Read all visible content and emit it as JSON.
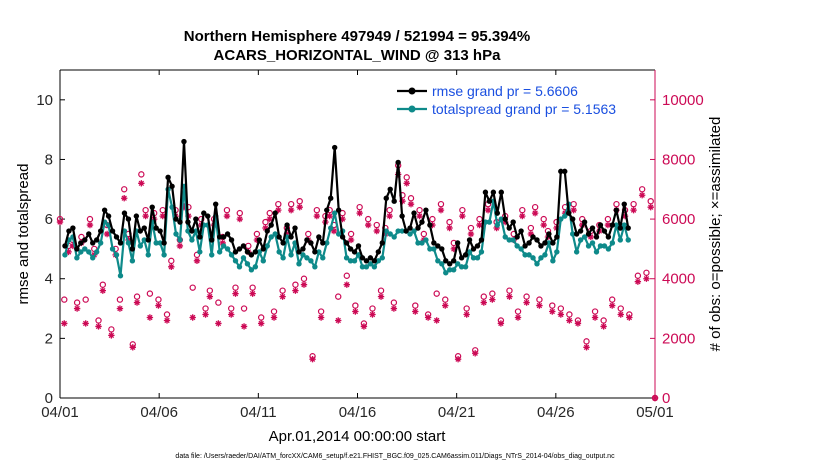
{
  "chart_data": {
    "type": "line",
    "title_line1": "Northern Hemisphere 497949 / 521994 = 95.394%",
    "title_line2": "ACARS_HORIZONTAL_WIND @ 313 hPa",
    "xlabel": "Apr.01,2014 00:00:00 start",
    "ylabel_left": "rmse and totalspread",
    "ylabel_right": "# of obs: o=possible; ×=assimilated",
    "x_ticks": [
      {
        "day": 0,
        "label": "04/01"
      },
      {
        "day": 5,
        "label": "04/06"
      },
      {
        "day": 10,
        "label": "04/11"
      },
      {
        "day": 15,
        "label": "04/16"
      },
      {
        "day": 20,
        "label": "04/21"
      },
      {
        "day": 25,
        "label": "04/26"
      },
      {
        "day": 30,
        "label": "05/01"
      }
    ],
    "xlim": [
      0,
      30
    ],
    "ylim_left": [
      0,
      11
    ],
    "ylim_right": [
      0,
      11000
    ],
    "yticks_left": [
      0,
      2,
      4,
      6,
      8,
      10
    ],
    "yticks_right": [
      0,
      2000,
      4000,
      6000,
      8000,
      10000
    ],
    "legend": [
      {
        "label": "rmse grand pr = 5.6606",
        "series": "rmse"
      },
      {
        "label": "totalspread grand pr = 5.1563",
        "series": "totalspread"
      }
    ],
    "colors": {
      "rmse": "#000000",
      "totalspread": "#0e8a8a",
      "obs": "#cc0a55",
      "legend_text": "#1a4fe0"
    },
    "series": [
      {
        "name": "rmse",
        "values": [
          5.1,
          5.6,
          5.7,
          5.0,
          5.2,
          5.3,
          5.5,
          5.2,
          5.3,
          5.6,
          6.3,
          6.1,
          5.6,
          5.4,
          5.2,
          6.2,
          6.0,
          5.0,
          6.1,
          5.6,
          5.7,
          5.3,
          6.4,
          5.7,
          5.6,
          5.2,
          7.4,
          7.1,
          6.0,
          5.9,
          8.6,
          5.9,
          5.6,
          6.0,
          5.4,
          6.2,
          6.1,
          5.3,
          6.5,
          5.4,
          5.4,
          5.5,
          5.3,
          4.9,
          5.0,
          5.1,
          4.9,
          4.8,
          4.9,
          5.3,
          5.0,
          5.6,
          5.8,
          6.2,
          5.4,
          5.2,
          5.8,
          5.4,
          5.7,
          4.9,
          5.0,
          5.3,
          5.2,
          4.9,
          5.4,
          5.2,
          6.3,
          6.7,
          8.4,
          6.3,
          5.4,
          5.2,
          5.0,
          4.9,
          5.1,
          4.7,
          4.6,
          4.7,
          4.6,
          4.9,
          5.2,
          6.7,
          7.0,
          6.6,
          7.9,
          6.1,
          5.6,
          5.7,
          6.2,
          5.7,
          5.9,
          6.3,
          5.8,
          5.2,
          5.1,
          5.0,
          4.6,
          4.5,
          4.6,
          5.2,
          4.7,
          4.8,
          5.3,
          5.0,
          5.1,
          5.3,
          6.9,
          6.6,
          6.9,
          6.2,
          6.9,
          6.0,
          5.7,
          5.9,
          5.4,
          5.6,
          5.1,
          5.2,
          5.4,
          5.3,
          5.1,
          5.2,
          5.5,
          5.2,
          5.4,
          7.6,
          7.6,
          6.2,
          6.0,
          5.5,
          5.6,
          5.9,
          5.5,
          5.7,
          5.4,
          5.8,
          5.6,
          5.4,
          5.8,
          6.3,
          5.7,
          6.5,
          5.7
        ]
      },
      {
        "name": "totalspread",
        "values": [
          4.8,
          5.3,
          5.4,
          4.7,
          4.9,
          5.0,
          4.9,
          4.7,
          4.9,
          5.2,
          5.9,
          5.8,
          5.0,
          4.8,
          4.1,
          5.6,
          5.2,
          4.6,
          5.6,
          5.1,
          5.3,
          4.8,
          5.9,
          5.2,
          5.2,
          4.8,
          7.0,
          6.4,
          5.5,
          5.3,
          7.1,
          5.6,
          5.3,
          5.6,
          4.9,
          5.8,
          5.8,
          4.8,
          6.1,
          4.9,
          5.1,
          5.0,
          4.8,
          4.6,
          4.4,
          4.7,
          4.5,
          4.3,
          4.4,
          4.9,
          4.6,
          5.1,
          5.4,
          5.5,
          4.9,
          4.7,
          5.4,
          4.8,
          5.2,
          4.5,
          4.8,
          4.7,
          4.6,
          4.4,
          4.9,
          4.7,
          5.2,
          5.7,
          6.2,
          5.5,
          5.6,
          4.7,
          4.6,
          4.6,
          4.8,
          4.4,
          4.4,
          4.5,
          4.4,
          4.6,
          4.7,
          5.6,
          5.5,
          5.4,
          5.6,
          5.6,
          5.6,
          5.5,
          5.6,
          5.2,
          5.2,
          5.3,
          5.0,
          5.0,
          4.6,
          4.5,
          4.2,
          4.3,
          4.3,
          4.5,
          4.4,
          4.4,
          4.9,
          4.7,
          4.7,
          4.9,
          5.9,
          5.9,
          6.6,
          5.8,
          6.0,
          5.4,
          5.3,
          5.3,
          5.1,
          5.0,
          4.8,
          4.8,
          4.7,
          4.5,
          4.7,
          4.8,
          5.2,
          4.6,
          4.9,
          6.0,
          6.1,
          6.5,
          5.5,
          4.9,
          5.3,
          5.4,
          5.1,
          5.2,
          4.9,
          5.1,
          5.1,
          5.0,
          5.2,
          5.8,
          5.3,
          5.8,
          5.3
        ]
      }
    ],
    "obs_possible": [
      6000,
      3300,
      5100,
      5300,
      3200,
      5400,
      3300,
      6000,
      5000,
      2600,
      3800,
      5800,
      2300,
      5000,
      3300,
      7000,
      5500,
      1800,
      3400,
      7500,
      6300,
      3500,
      6200,
      3300,
      6300,
      2800,
      4600,
      6300,
      5300,
      6600,
      6400,
      3700,
      4800,
      6000,
      3000,
      3600,
      6000,
      3200,
      5400,
      6300,
      3000,
      3700,
      6200,
      3000,
      5100,
      3700,
      5500,
      2700,
      5900,
      6200,
      2900,
      6500,
      3600,
      5700,
      6500,
      3800,
      6600,
      4000,
      5500,
      1400,
      6300,
      2900,
      6100,
      6300,
      5800,
      3400,
      6200,
      4100,
      5500,
      3100,
      6400,
      2500,
      6000,
      3000,
      5800,
      3600,
      5700,
      6300,
      3200,
      7800,
      6800,
      7400,
      6700,
      3100,
      6300,
      5500,
      2800,
      6000,
      3500,
      6500,
      3300,
      5900,
      5200,
      1400,
      6300,
      3000,
      5700,
      1600,
      6000,
      3400,
      6500,
      3500,
      5900,
      2600,
      6100,
      3600,
      5500,
      2900,
      6300,
      3400,
      5700,
      6400,
      3300,
      6000,
      5600,
      3100,
      5900,
      3000,
      6400,
      2800,
      6500,
      2600,
      6000,
      1900,
      5600,
      2900,
      5800,
      2600,
      6000,
      3300,
      6500,
      3000,
      6300,
      2800,
      6500,
      4100,
      7000,
      4200,
      6600,
      0
    ],
    "obs_assimilated": [
      5900,
      2500,
      4900,
      5100,
      3000,
      5200,
      2500,
      5800,
      4800,
      2400,
      3600,
      5500,
      2100,
      4800,
      3000,
      6700,
      5300,
      1700,
      3200,
      7200,
      6100,
      2700,
      6000,
      3100,
      6100,
      2600,
      4400,
      6100,
      5100,
      6400,
      6100,
      2700,
      4600,
      5800,
      2800,
      3400,
      5800,
      2500,
      5200,
      6100,
      2800,
      3500,
      6000,
      2400,
      4900,
      3500,
      5300,
      2500,
      5700,
      6000,
      2700,
      6300,
      3400,
      5500,
      6300,
      3600,
      6400,
      3800,
      5300,
      1300,
      6100,
      2700,
      5900,
      6100,
      5600,
      2600,
      6000,
      3800,
      5300,
      2900,
      6200,
      2400,
      5800,
      2800,
      5600,
      3400,
      5500,
      6100,
      3000,
      7500,
      6600,
      7200,
      6500,
      2900,
      6100,
      5300,
      2700,
      5800,
      2600,
      6300,
      3100,
      5700,
      5000,
      1300,
      6100,
      2800,
      5500,
      1500,
      5800,
      3200,
      6300,
      3300,
      5700,
      2500,
      5900,
      3400,
      5300,
      2700,
      6100,
      3200,
      5500,
      6200,
      3100,
      5800,
      5400,
      2900,
      5700,
      2800,
      6200,
      2600,
      6300,
      2500,
      5800,
      1700,
      5400,
      2700,
      5600,
      2400,
      5800,
      3100,
      6300,
      2800,
      6100,
      2700,
      6300,
      3900,
      6800,
      4000,
      6400,
      0
    ]
  },
  "footer": "data file: /Users/raeder/DAI/ATM_forcXX/CAM6_setup/f.e21.FHIST_BGC.f09_025.CAM6assim.011/Diags_NTrS_2014-04/obs_diag_output.nc"
}
